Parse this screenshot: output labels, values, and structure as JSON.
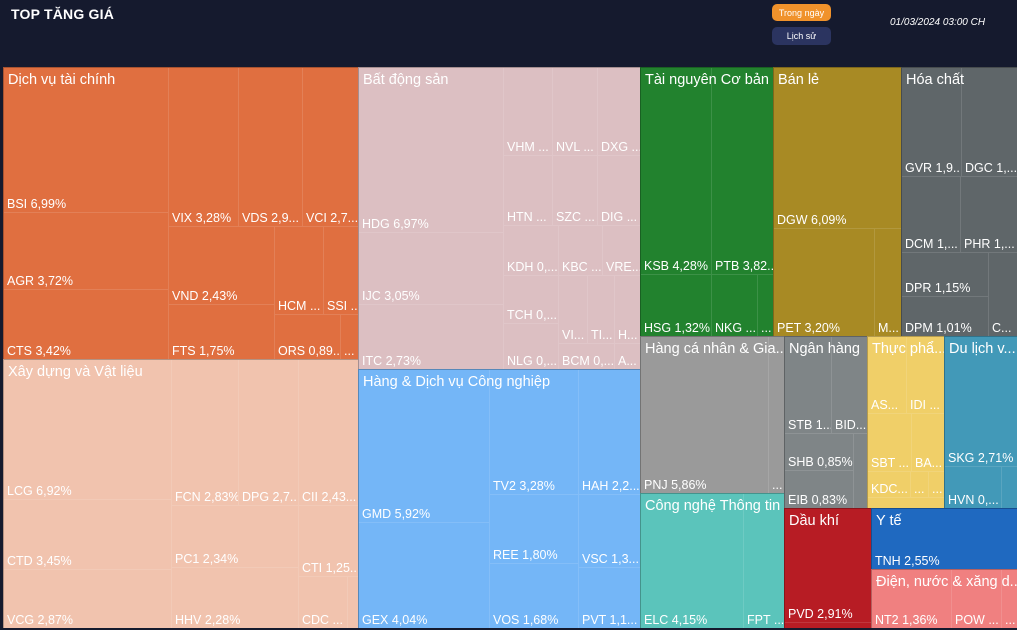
{
  "header": {
    "title": "TOP TĂNG GIÁ",
    "btn_today": "Trong ngày",
    "btn_history": "Lịch sử",
    "timestamp": "01/03/2024 03:00 CH",
    "btn_today_color": "#f0922b",
    "btn_history_color": "#2b3460"
  },
  "sectors": [
    {
      "name": "Dịch vụ tài chính",
      "color": "#e06f40",
      "tiles": [
        {
          "label": "BSI 6,99%"
        },
        {
          "label": "AGR 3,72%"
        },
        {
          "label": "CTS 3,42%"
        },
        {
          "label": "VIX 3,28%"
        },
        {
          "label": "VDS 2,9..."
        },
        {
          "label": "VCI 2,7..."
        },
        {
          "label": "VND 2,43%"
        },
        {
          "label": "FTS 1,75%"
        },
        {
          "label": "HCM ..."
        },
        {
          "label": "SSI ..."
        },
        {
          "label": "ORS 0,89..."
        },
        {
          "label": "..."
        }
      ]
    },
    {
      "name": "Bất động sản",
      "color": "#dcbfc2",
      "tiles": [
        {
          "label": "HDG 6,97%"
        },
        {
          "label": "IJC 3,05%"
        },
        {
          "label": "ITC 2,73%"
        },
        {
          "label": "VHM ..."
        },
        {
          "label": "NVL ..."
        },
        {
          "label": "DXG ..."
        },
        {
          "label": "HTN ..."
        },
        {
          "label": "SZC ..."
        },
        {
          "label": "DIG ..."
        },
        {
          "label": "KDH 0,..."
        },
        {
          "label": "KBC ..."
        },
        {
          "label": "VRE..."
        },
        {
          "label": "TCH 0,..."
        },
        {
          "label": "NLG 0,..."
        },
        {
          "label": "VI..."
        },
        {
          "label": "TI..."
        },
        {
          "label": "H..."
        },
        {
          "label": "BCM 0,..."
        },
        {
          "label": "A..."
        }
      ]
    },
    {
      "name": "Tài nguyên Cơ bản",
      "color": "#22822e",
      "tiles": [
        {
          "label": "KSB 4,28%"
        },
        {
          "label": "PTB 3,82..."
        },
        {
          "label": "HSG 1,32%"
        },
        {
          "label": "NKG ..."
        },
        {
          "label": "..."
        }
      ]
    },
    {
      "name": "Bán lẻ",
      "color": "#a88a24",
      "tiles": [
        {
          "label": "DGW 6,09%"
        },
        {
          "label": "PET 3,20%"
        },
        {
          "label": "M..."
        }
      ]
    },
    {
      "name": "Hóa chất",
      "color": "#5f6669",
      "tiles": [
        {
          "label": "GVR 1,9..."
        },
        {
          "label": "DGC 1,..."
        },
        {
          "label": "DCM 1,..."
        },
        {
          "label": "PHR 1,..."
        },
        {
          "label": "DPR 1,15%"
        },
        {
          "label": "DPM 1,01%"
        },
        {
          "label": "C..."
        }
      ]
    },
    {
      "name": "Xây dựng và Vật liệu",
      "color": "#f1c3ae",
      "tiles": [
        {
          "label": "LCG 6,92%"
        },
        {
          "label": "CTD 3,45%"
        },
        {
          "label": "VCG 2,87%"
        },
        {
          "label": "FCN 2,83%"
        },
        {
          "label": "DPG 2,7..."
        },
        {
          "label": "CII 2,43..."
        },
        {
          "label": "PC1 2,34%"
        },
        {
          "label": "HHV 2,28%"
        },
        {
          "label": "CTI 1,25..."
        },
        {
          "label": "CDC ..."
        },
        {
          "label": ""
        }
      ]
    },
    {
      "name": "Hàng & Dịch vụ Công nghiệp",
      "color": "#74b6f7",
      "tiles": [
        {
          "label": "GMD 5,92%"
        },
        {
          "label": "GEX 4,04%"
        },
        {
          "label": "TV2 3,28%"
        },
        {
          "label": "REE 1,80%"
        },
        {
          "label": "VOS 1,68%"
        },
        {
          "label": "HAH 2,2..."
        },
        {
          "label": "VSC 1,3..."
        },
        {
          "label": "PVT 1,1..."
        }
      ]
    },
    {
      "name": "Hàng cá nhân & Gia...",
      "color": "#9a9a9a",
      "tiles": [
        {
          "label": "PNJ 5,86%"
        },
        {
          "label": "..."
        }
      ]
    },
    {
      "name": "Công nghệ Thông tin",
      "color": "#5bc4bb",
      "tiles": [
        {
          "label": "ELC 4,15%"
        },
        {
          "label": "FPT ..."
        }
      ]
    },
    {
      "name": "Ngân hàng",
      "color": "#7f8587",
      "tiles": [
        {
          "label": "STB 1..."
        },
        {
          "label": "BID..."
        },
        {
          "label": "SHB 0,85%"
        },
        {
          "label": "EIB 0,83%"
        },
        {
          "label": ""
        }
      ]
    },
    {
      "name": "Thực phẩ...",
      "color": "#f0cf68",
      "tiles": [
        {
          "label": "AS..."
        },
        {
          "label": "IDI ..."
        },
        {
          "label": "SBT ..."
        },
        {
          "label": "BA..."
        },
        {
          "label": "KDC..."
        },
        {
          "label": "..."
        },
        {
          "label": "..."
        },
        {
          "label": ""
        }
      ]
    },
    {
      "name": "Du lịch v...",
      "color": "#4299b8",
      "tiles": [
        {
          "label": "SKG 2,71%"
        },
        {
          "label": "HVN 0,..."
        },
        {
          "label": ""
        }
      ]
    },
    {
      "name": "Dầu khí",
      "color": "#b71c24",
      "tiles": [
        {
          "label": "PVD 2,91%"
        },
        {
          "label": ""
        }
      ]
    },
    {
      "name": "Y tế",
      "color": "#1f69c0",
      "tiles": [
        {
          "label": "TNH 2,55%"
        }
      ]
    },
    {
      "name": "Điện, nước & xăng d...",
      "color": "#f08080",
      "tiles": [
        {
          "label": "NT2 1,36%"
        },
        {
          "label": "POW ..."
        },
        {
          "label": "..."
        }
      ]
    }
  ]
}
